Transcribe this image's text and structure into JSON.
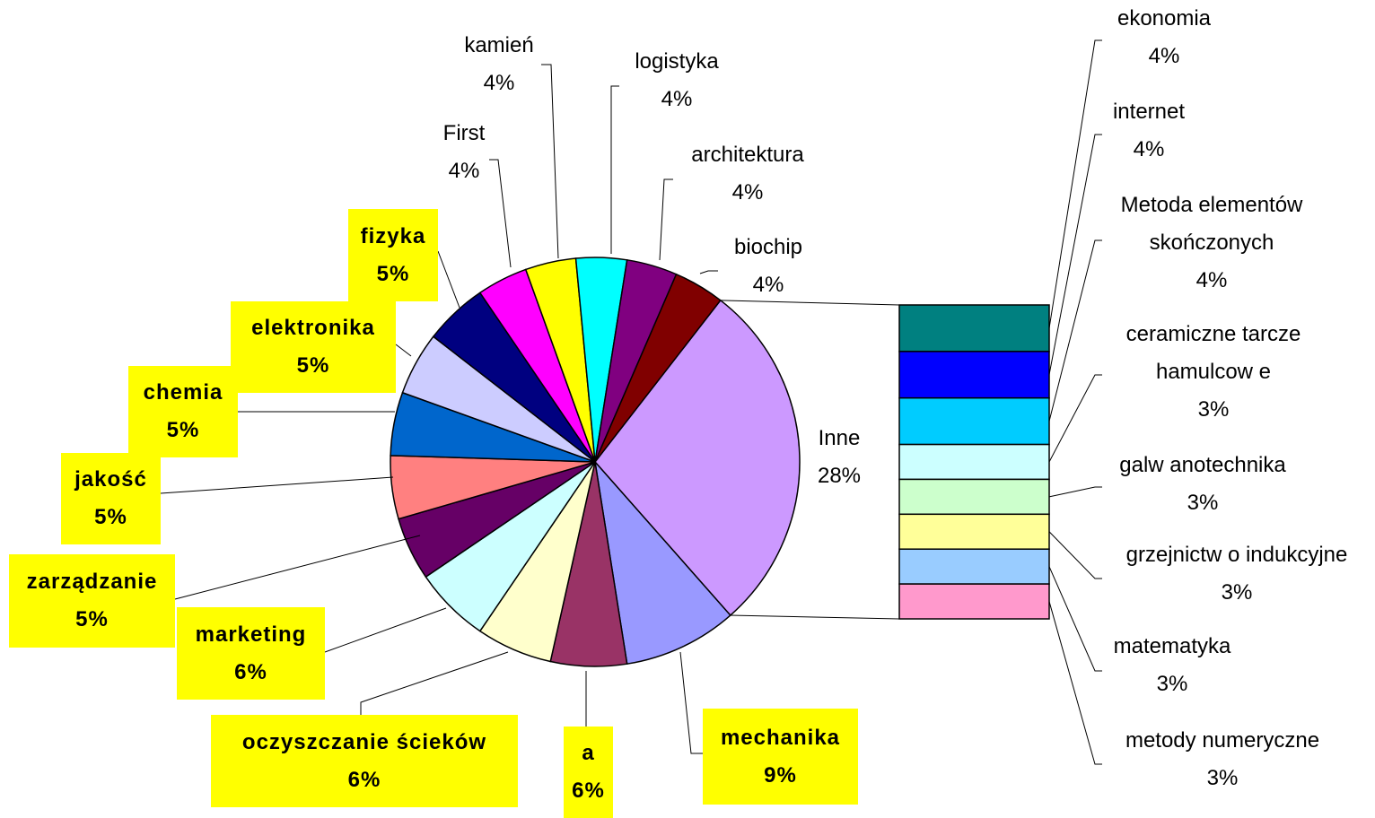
{
  "chart_data": {
    "type": "pie",
    "categories": [
      "Inne",
      "mechanika",
      "a",
      "oczyszczanie ścieków",
      "marketing",
      "zarządzanie",
      "jakość",
      "chemia",
      "elektronika",
      "fizyka",
      "First",
      "kamień",
      "logistyka",
      "architektura",
      "biochip"
    ],
    "values": [
      28,
      9,
      6,
      6,
      6,
      5,
      5,
      5,
      5,
      5,
      4,
      4,
      4,
      4,
      4
    ],
    "value_labels": [
      "28%",
      "9%",
      "6%",
      "6%",
      "6%",
      "5%",
      "5%",
      "5%",
      "5%",
      "5%",
      "4%",
      "4%",
      "4%",
      "4%",
      "4%"
    ],
    "colors": [
      "#cc99ff",
      "#9999ff",
      "#993366",
      "#ffffcc",
      "#ccffff",
      "#660066",
      "#ff8080",
      "#0066cc",
      "#ccccff",
      "#000080",
      "#ff00ff",
      "#ffff00",
      "#00ffff",
      "#800080",
      "#800000"
    ],
    "highlighted": [
      false,
      true,
      true,
      true,
      true,
      true,
      true,
      true,
      true,
      true,
      false,
      false,
      false,
      false,
      false
    ],
    "highlight_color": "#ffff00",
    "bar_of_pie": {
      "categories": [
        "ekonomia",
        "internet",
        "Metoda elementów skończonych",
        "ceramiczne tarcze hamulcow e",
        "galw anotechnika",
        "grzejnictw o indukcyjne",
        "matematyka",
        "metody numeryczne"
      ],
      "values": [
        4,
        4,
        4,
        3,
        3,
        3,
        3,
        3
      ],
      "value_labels": [
        "4%",
        "4%",
        "4%",
        "3%",
        "3%",
        "3%",
        "3%",
        "3%"
      ],
      "colors": [
        "#008080",
        "#0000ff",
        "#00ccff",
        "#ccffff",
        "#ccffcc",
        "#ffff99",
        "#99ccff",
        "#ff99cc"
      ]
    }
  }
}
